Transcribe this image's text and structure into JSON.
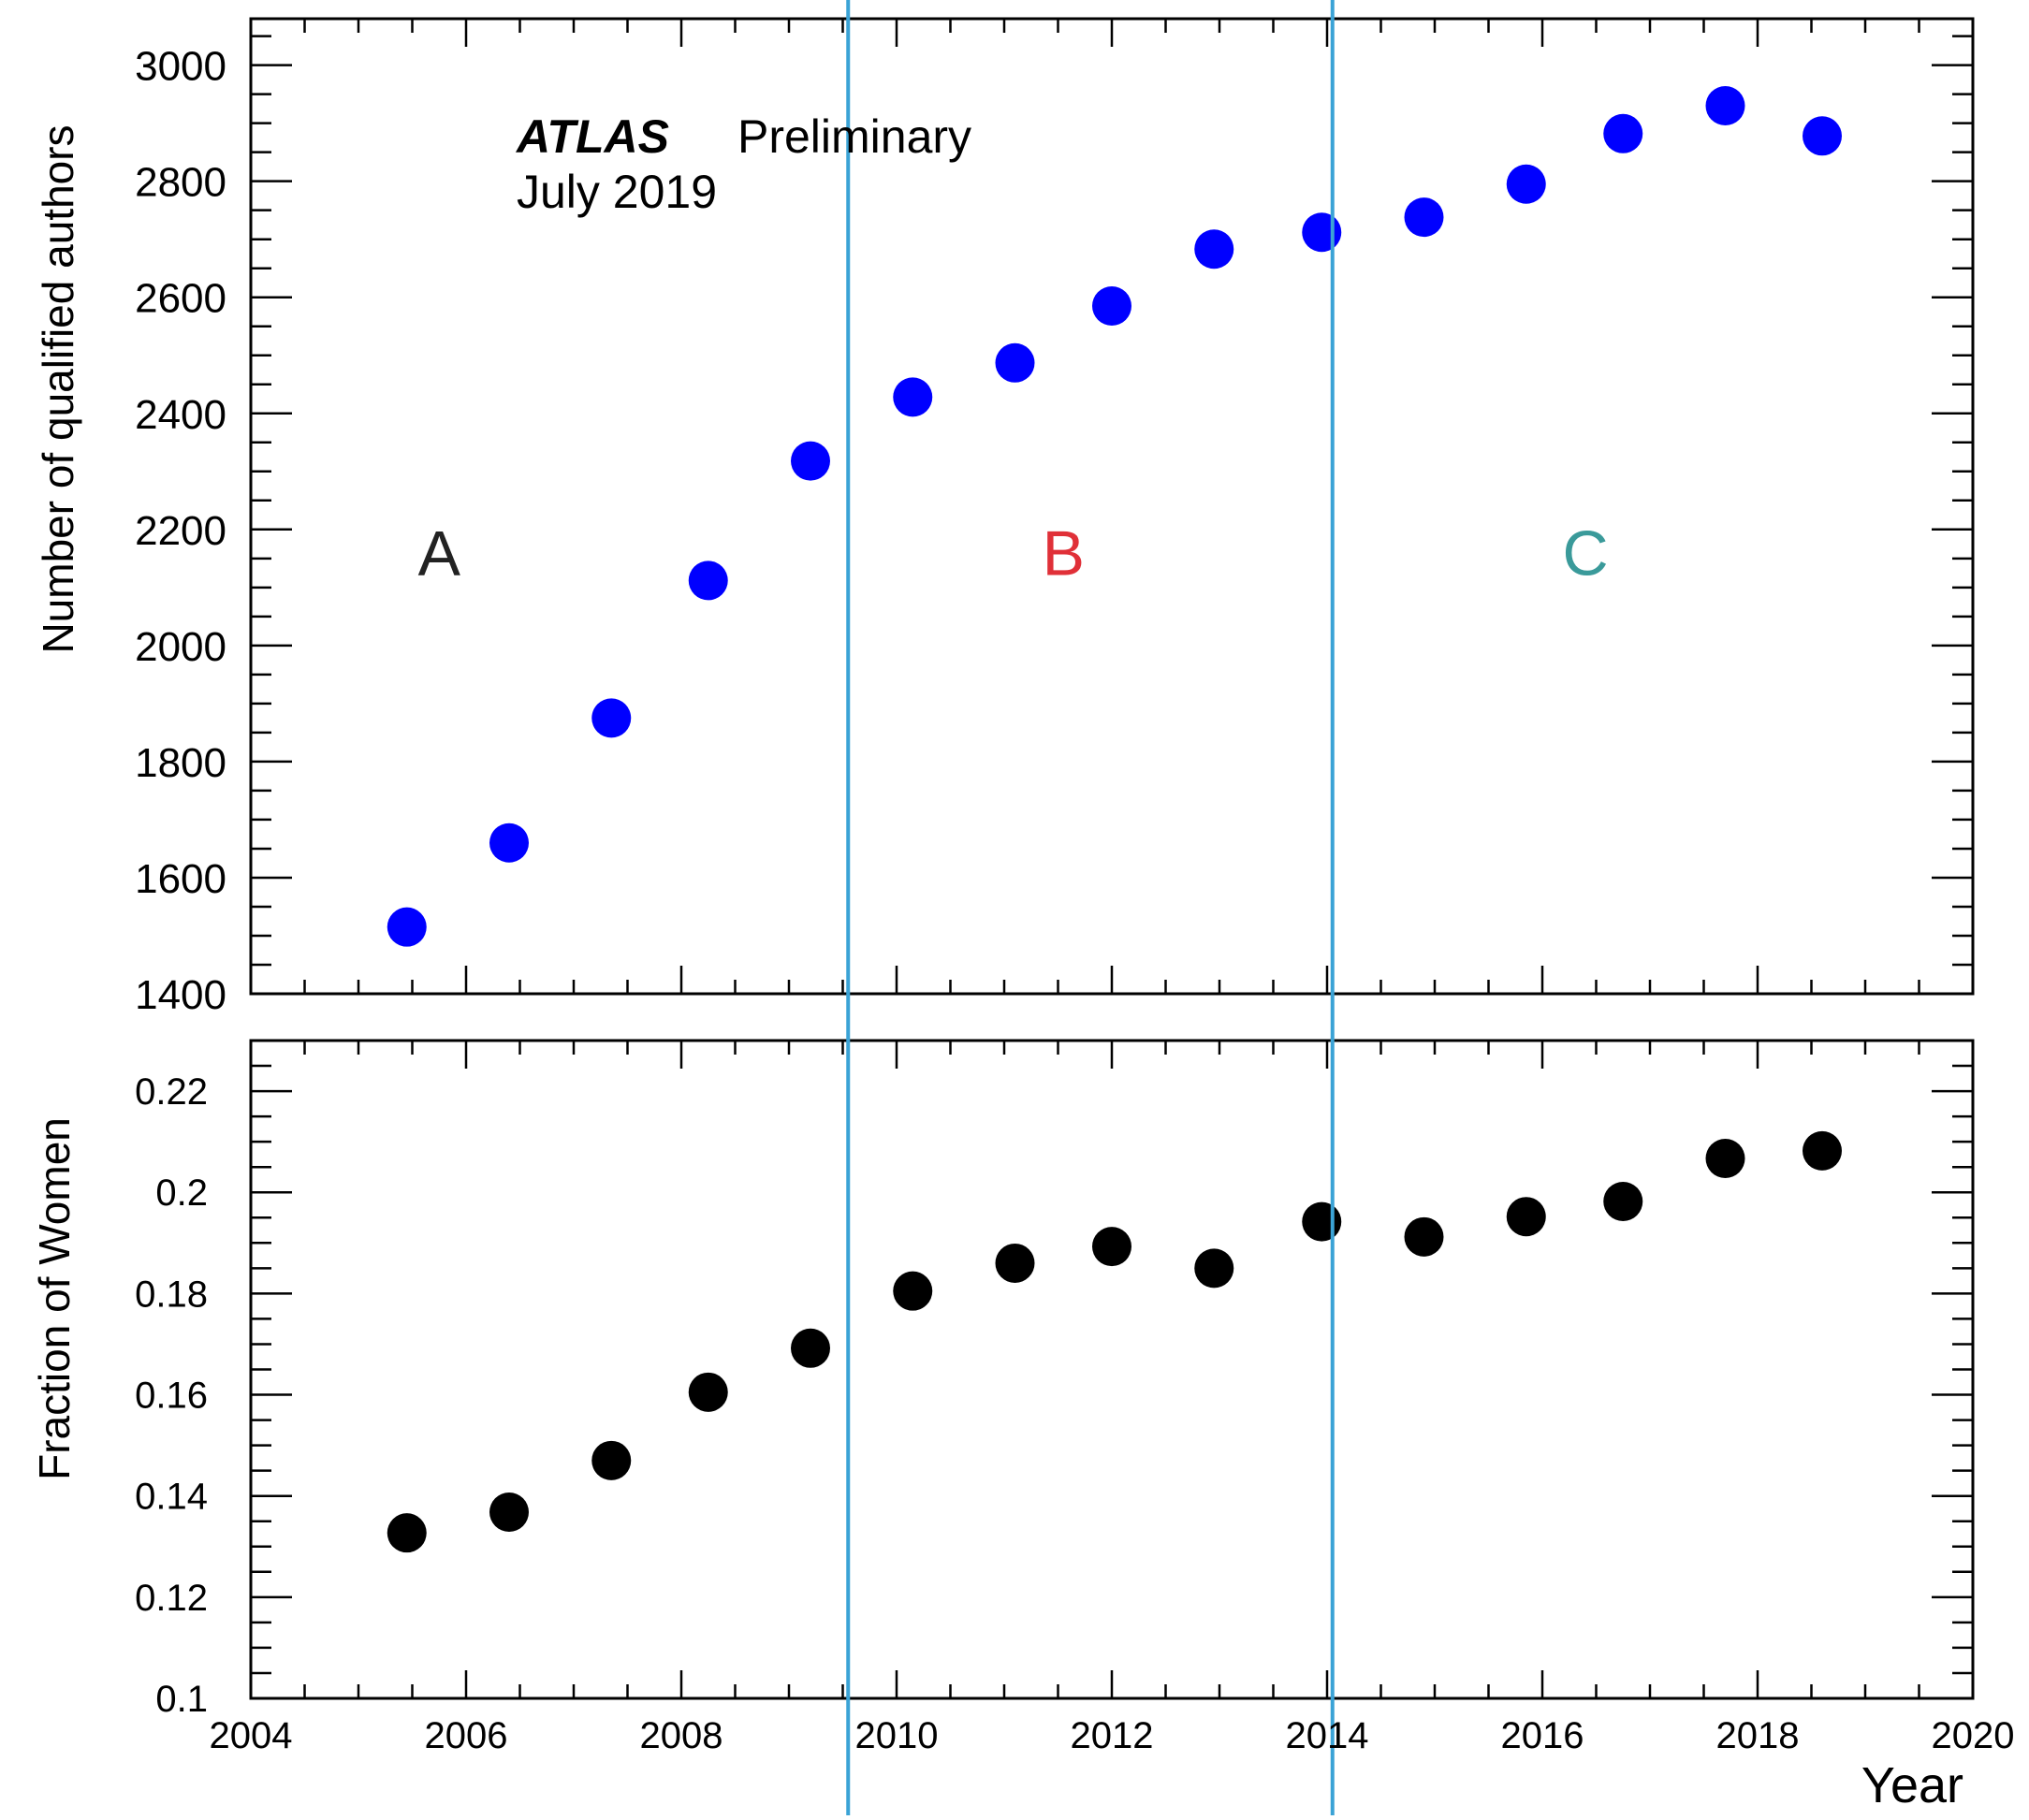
{
  "chart_data": [
    {
      "type": "scatter",
      "panel": "top",
      "ylabel": "Number of qualified authors",
      "ylim": [
        1400,
        3080
      ],
      "y_ticks": [
        1400,
        1600,
        1800,
        2000,
        2200,
        2400,
        2600,
        2800,
        3000
      ],
      "y_tick_labels": [
        "1400",
        "1600",
        "1800",
        "2000",
        "2200",
        "2400",
        "2600",
        "2800",
        "3000"
      ],
      "x": [
        2005.45,
        2006.4,
        2007.35,
        2008.25,
        2009.2,
        2010.15,
        2011.1,
        2012.0,
        2012.95,
        2013.95,
        2014.9,
        2015.85,
        2016.75,
        2017.7,
        2018.6
      ],
      "series": [
        {
          "values": [
            1515,
            1660,
            1875,
            2112,
            2318,
            2428,
            2487,
            2585,
            2683,
            2712,
            2738,
            2795,
            2882,
            2930,
            2878
          ],
          "color": "#0000ff"
        }
      ],
      "annotations": {
        "experiment": "ATLAS",
        "status": "Preliminary",
        "date": "July 2019"
      }
    },
    {
      "type": "scatter",
      "panel": "bottom",
      "xlabel": "Year",
      "ylabel": "Fraction of Women",
      "ylim": [
        0.1,
        0.23
      ],
      "y_ticks": [
        0.1,
        0.12,
        0.14,
        0.16,
        0.18,
        0.2,
        0.22
      ],
      "y_tick_labels": [
        "0.1",
        "0.12",
        "0.14",
        "0.16",
        "0.18",
        "0.2",
        "0.22"
      ],
      "x": [
        2005.45,
        2006.4,
        2007.35,
        2008.25,
        2009.2,
        2010.15,
        2011.1,
        2012.0,
        2012.95,
        2013.95,
        2014.9,
        2015.85,
        2016.75,
        2017.7,
        2018.6
      ],
      "series": [
        {
          "values": [
            0.1327,
            0.1368,
            0.147,
            0.1605,
            0.1692,
            0.1805,
            0.186,
            0.1893,
            0.185,
            0.1942,
            0.1912,
            0.1952,
            0.1982,
            0.2067,
            0.2082
          ],
          "color": "#000000"
        }
      ]
    }
  ],
  "shared_x": {
    "xlim": [
      2004,
      2020
    ],
    "x_ticks": [
      2004,
      2006,
      2008,
      2010,
      2012,
      2014,
      2016,
      2018,
      2020
    ],
    "x_tick_labels": [
      "2004",
      "2006",
      "2008",
      "2010",
      "2012",
      "2014",
      "2016",
      "2018",
      "2020"
    ]
  },
  "dividers": {
    "x": [
      2009.55,
      2014.05
    ],
    "color": "#3ba3d6"
  },
  "regions": [
    {
      "label": "A",
      "x": 2005.75,
      "color": "#222222"
    },
    {
      "label": "B",
      "x": 2011.55,
      "color": "#e03038"
    },
    {
      "label": "C",
      "x": 2016.4,
      "color": "#3a9a9a"
    }
  ],
  "regions_y_value": 2160
}
